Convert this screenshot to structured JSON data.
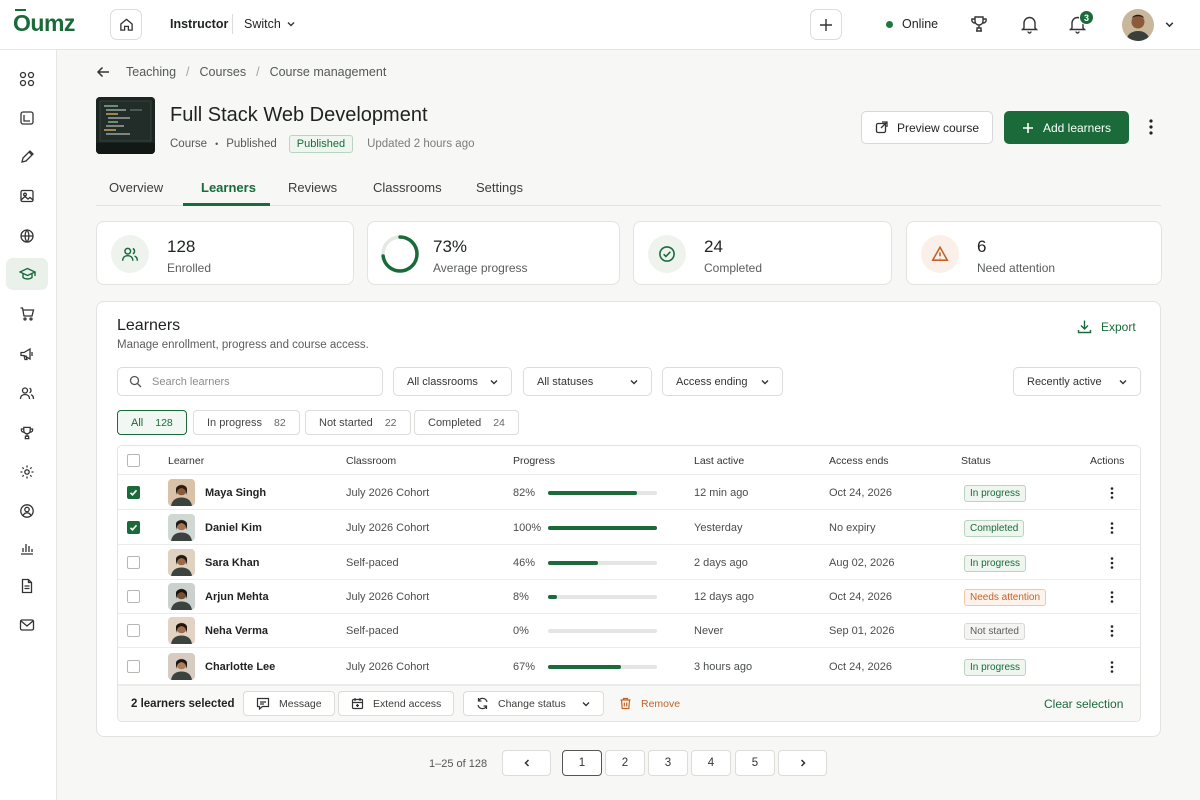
{
  "app": {
    "logo": "Oumz"
  },
  "topbar": {
    "role": "Instructor",
    "switch_label": "Switch",
    "online_label": "Online",
    "notif_count": "3"
  },
  "breadcrumb": [
    "Teaching",
    "Courses",
    "Course management"
  ],
  "course": {
    "title": "Full Stack Web Development",
    "type": "Course",
    "visibility": "Published",
    "status_badge": "Published",
    "updated": "Updated 2 hours ago",
    "preview_label": "Preview course",
    "add_label": "Add learners"
  },
  "tabs": [
    "Overview",
    "Learners",
    "Reviews",
    "Classrooms",
    "Settings"
  ],
  "active_tab": "Learners",
  "stats": [
    {
      "value": "128",
      "label": "Enrolled",
      "icon": "users-icon"
    },
    {
      "value": "73%",
      "label": "Average progress",
      "icon": "progress-ring",
      "progress": 0.73
    },
    {
      "value": "24",
      "label": "Completed",
      "icon": "check-circle-icon"
    },
    {
      "value": "6",
      "label": "Need attention",
      "icon": "warning-icon"
    }
  ],
  "learners_panel": {
    "title": "Learners",
    "subtitle": "Manage enrollment, progress and course access.",
    "export_label": "Export",
    "search_placeholder": "Search learners",
    "filters": {
      "classrooms": "All classrooms",
      "statuses": "All statuses",
      "access": "Access ending",
      "sort": "Recently active"
    },
    "segments": [
      {
        "label": "All",
        "count": "128",
        "active": true
      },
      {
        "label": "In progress",
        "count": "82"
      },
      {
        "label": "Not started",
        "count": "22"
      },
      {
        "label": "Completed",
        "count": "24"
      }
    ],
    "columns": [
      "Learner",
      "Classroom",
      "Progress",
      "Last active",
      "Access ends",
      "Status",
      "Actions"
    ],
    "rows": [
      {
        "name": "Maya Singh",
        "classroom": "July 2026 Cohort",
        "progress": "82%",
        "pct": 82,
        "last_active": "12 min ago",
        "access_ends": "Oct 24, 2026",
        "status": "In progress",
        "checked": true
      },
      {
        "name": "Daniel Kim",
        "classroom": "July 2026 Cohort",
        "progress": "100%",
        "pct": 100,
        "last_active": "Yesterday",
        "access_ends": "No expiry",
        "status": "Completed",
        "checked": true
      },
      {
        "name": "Sara Khan",
        "classroom": "Self-paced",
        "progress": "46%",
        "pct": 46,
        "last_active": "2 days ago",
        "access_ends": "Aug 02, 2026",
        "status": "In progress",
        "checked": false
      },
      {
        "name": "Arjun Mehta",
        "classroom": "July 2026 Cohort",
        "progress": "8%",
        "pct": 8,
        "last_active": "12 days ago",
        "access_ends": "Oct 24, 2026",
        "status": "Needs attention",
        "checked": false
      },
      {
        "name": "Neha Verma",
        "classroom": "Self-paced",
        "progress": "0%",
        "pct": 0,
        "last_active": "Never",
        "access_ends": "Sep 01, 2026",
        "status": "Not started",
        "checked": false
      },
      {
        "name": "Charlotte Lee",
        "classroom": "July 2026 Cohort",
        "progress": "67%",
        "pct": 67,
        "last_active": "3 hours ago",
        "access_ends": "Oct 24, 2026",
        "status": "In progress",
        "checked": false
      }
    ],
    "bulk": {
      "selected": "2 learners selected",
      "message": "Message",
      "extend": "Extend access",
      "change": "Change status",
      "remove": "Remove",
      "clear": "Clear selection"
    }
  },
  "pagination": {
    "info": "1–25 of 128",
    "pages": [
      "1",
      "2",
      "3",
      "4",
      "5"
    ],
    "current": "1"
  },
  "colors": {
    "brand": "#1a6a3a",
    "attention": "#c0642a"
  }
}
